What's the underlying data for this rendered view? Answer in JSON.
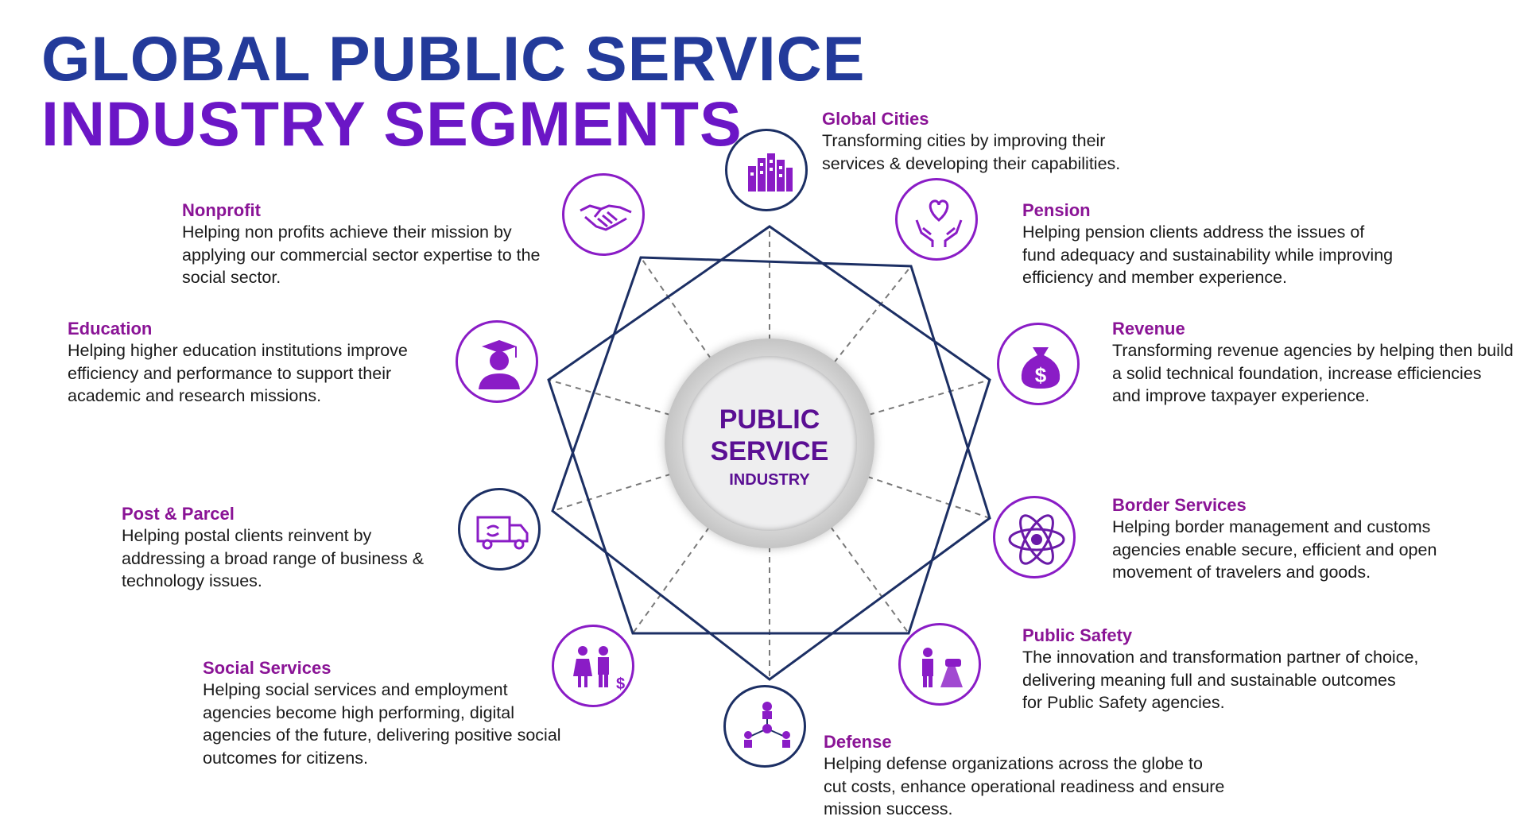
{
  "title": {
    "line1": "GLOBAL PUBLIC SERVICE",
    "line2": "INDUSTRY SEGMENTS"
  },
  "center": {
    "line1": "PUBLIC",
    "line2": "SERVICE",
    "line3": "INDUSTRY"
  },
  "colors": {
    "title_blue": "#233a9a",
    "title_purple": "#6b16c6",
    "heading": "#8a1496",
    "navy": "#1c2f64",
    "purple": "#8a1cc6"
  },
  "segments": [
    {
      "title": "Global Cities",
      "text": "Transforming cities by improving their services & developing their capabilities.",
      "icon": "city-buildings-icon"
    },
    {
      "title": "Pension",
      "text": "Helping pension clients address the issues of fund adequacy and sustainability while improving efficiency and member experience.",
      "icon": "heart-hands-icon"
    },
    {
      "title": "Revenue",
      "text": "Transforming revenue agencies by helping then build a solid technical foundation, increase efficiencies and improve taxpayer experience.",
      "icon": "money-bag-icon"
    },
    {
      "title": "Border Services",
      "text": "Helping border management and customs agencies enable secure, efficient and open movement of travelers and goods.",
      "icon": "atom-icon"
    },
    {
      "title": "Public Safety",
      "text": "The innovation and transformation partner of choice, delivering meaning full and sustainable outcomes for Public Safety agencies.",
      "icon": "police-road-icon"
    },
    {
      "title": "Defense",
      "text": "Helping defense organizations across the globe to cut costs, enhance operational readiness and ensure mission success.",
      "icon": "network-people-icon"
    },
    {
      "title": "Social Services",
      "text": "Helping social services and employment agencies become high performing, digital agencies of the future, delivering positive social outcomes for citizens.",
      "icon": "family-icon"
    },
    {
      "title": "Post & Parcel",
      "text": "Helping postal clients reinvent by addressing a broad range of business & technology issues.",
      "icon": "delivery-truck-icon"
    },
    {
      "title": "Education",
      "text": "Helping higher education institutions improve efficiency and performance to support their academic and research missions.",
      "icon": "graduate-icon"
    },
    {
      "title": "Nonprofit",
      "text": "Helping non profits achieve their mission by applying our commercial sector expertise to the social sector.",
      "icon": "handshake-icon"
    }
  ]
}
